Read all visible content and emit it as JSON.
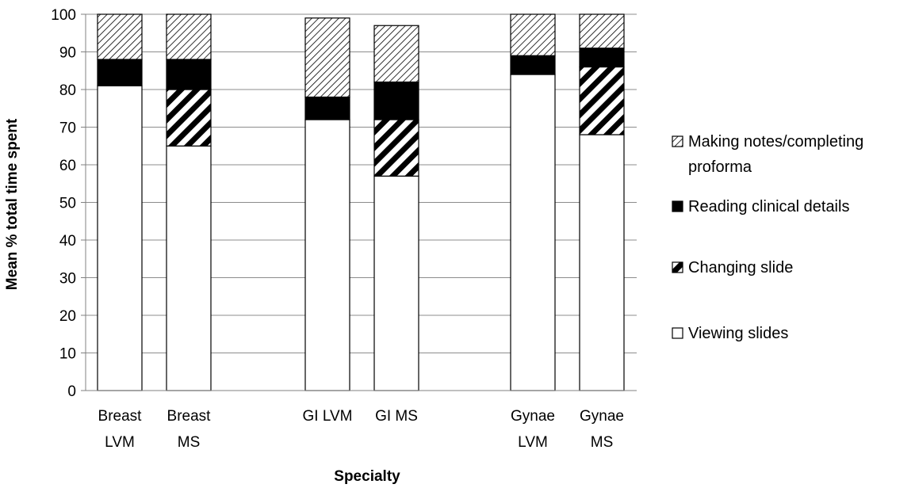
{
  "chart_data": {
    "type": "bar",
    "stacked": true,
    "xlabel": "Specialty",
    "ylabel": "Mean % total time spent",
    "ylim": [
      0,
      100
    ],
    "yticks": [
      0,
      10,
      20,
      30,
      40,
      50,
      60,
      70,
      80,
      90,
      100
    ],
    "grid": true,
    "legend_position": "right",
    "categories": [
      [
        "Breast",
        "LVM"
      ],
      [
        "Breast",
        "MS"
      ],
      [
        "GI LVM"
      ],
      [
        "GI MS"
      ],
      [
        "Gynae",
        "LVM"
      ],
      [
        "Gynae",
        "MS"
      ]
    ],
    "series": [
      {
        "name": "Viewing slides",
        "pattern": "none",
        "values": [
          81,
          65,
          72,
          57,
          84,
          68
        ]
      },
      {
        "name": "Changing slide",
        "pattern": "wide-diagonal",
        "values": [
          0,
          15,
          0,
          15,
          0,
          18
        ]
      },
      {
        "name": "Reading clinical details",
        "pattern": "solid-black",
        "values": [
          7,
          8,
          6,
          10,
          5,
          5
        ]
      },
      {
        "name": "Making notes/completing proforma",
        "pattern": "fine-diagonal",
        "values": [
          12,
          12,
          21,
          15,
          11,
          9
        ]
      }
    ],
    "legend": {
      "entries": [
        {
          "series": 3,
          "lines": [
            "Making notes/completing",
            "proforma"
          ]
        },
        {
          "series": 2,
          "lines": [
            "Reading clinical details"
          ]
        },
        {
          "series": 1,
          "lines": [
            "Changing slide"
          ]
        },
        {
          "series": 0,
          "lines": [
            "Viewing slides"
          ]
        }
      ]
    },
    "colors": {
      "fill": "#ffffff",
      "stroke": "#000000",
      "grid": "#8c8c8c",
      "axis": "#808080"
    }
  }
}
